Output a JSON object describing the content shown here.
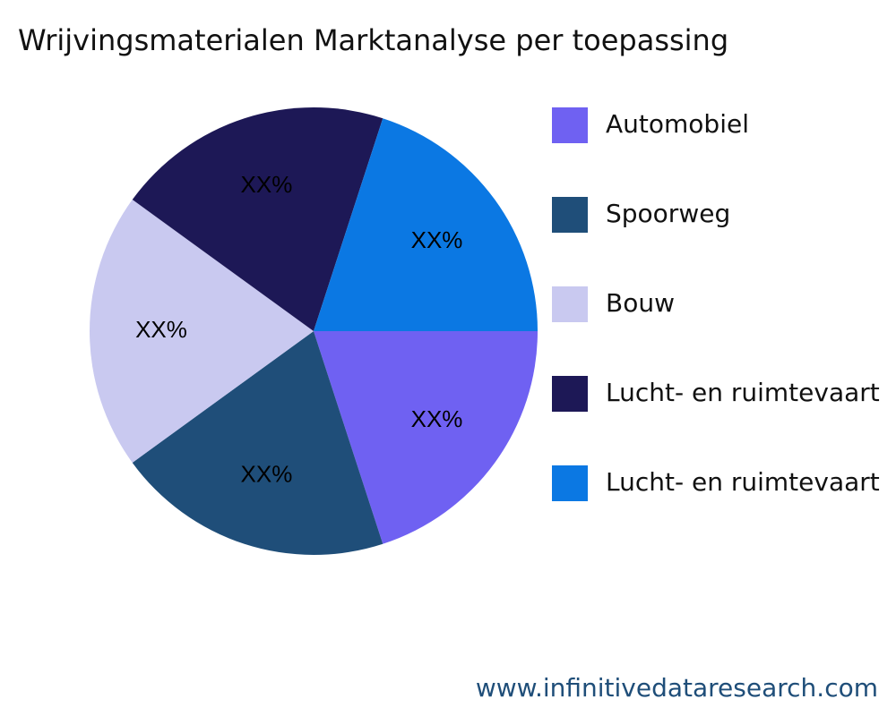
{
  "chart_data": {
    "type": "pie",
    "title": "Wrijvingsmaterialen Marktanalyse per toepassing",
    "categories": [
      "Automobiel",
      "Spoorweg",
      "Bouw",
      "Lucht- en ruimtevaart",
      "Lucht- en ruimtevaart"
    ],
    "values": [
      20,
      20,
      20,
      20,
      20
    ],
    "value_labels": [
      "XX%",
      "XX%",
      "XX%",
      "XX%",
      "XX%"
    ],
    "colors": [
      "#6f61f2",
      "#1f4e79",
      "#c9c9f0",
      "#1d1856",
      "#0b78e3"
    ],
    "legend": "right",
    "watermark": "www.infinitivedataresearch.com"
  }
}
